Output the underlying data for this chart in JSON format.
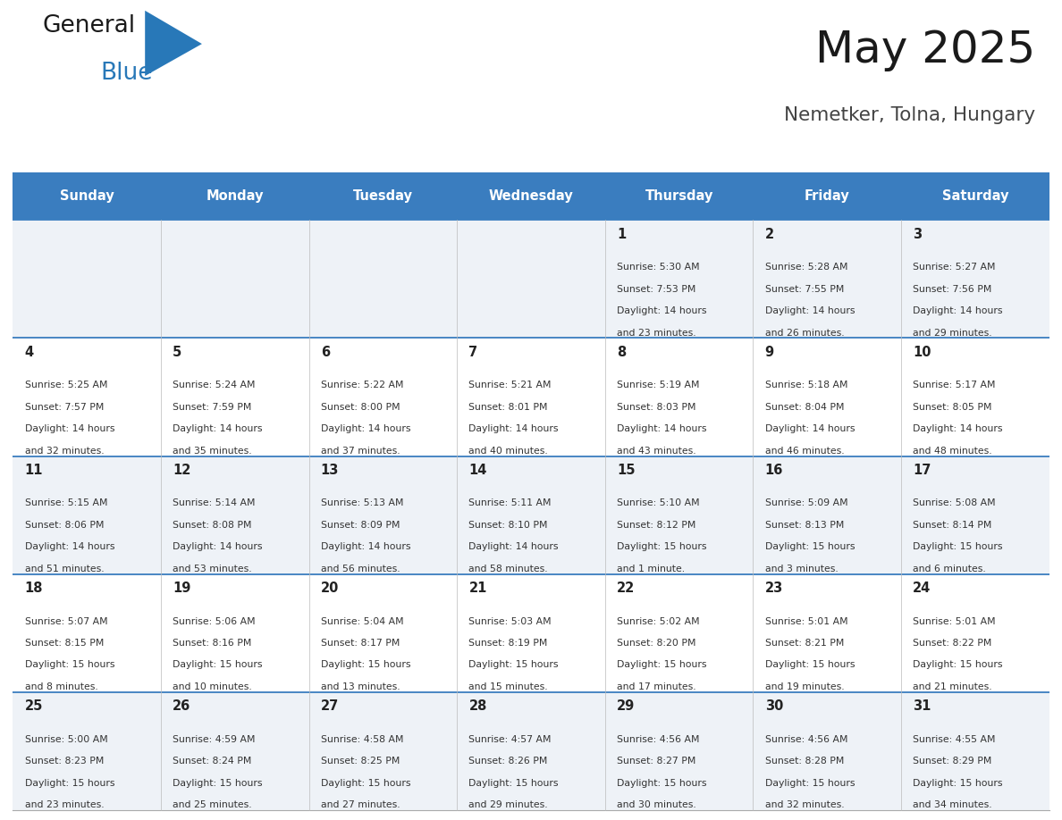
{
  "title": "May 2025",
  "subtitle": "Nemetker, Tolna, Hungary",
  "days_of_week": [
    "Sunday",
    "Monday",
    "Tuesday",
    "Wednesday",
    "Thursday",
    "Friday",
    "Saturday"
  ],
  "header_bg": "#3a7dbf",
  "header_text_color": "#ffffff",
  "row_bg_even": "#eef2f7",
  "row_bg_odd": "#ffffff",
  "border_color": "#3a7dbf",
  "day_num_color": "#222222",
  "info_text_color": "#333333",
  "title_color": "#1a1a1a",
  "subtitle_color": "#444444",
  "logo_color_general": "#1a1a1a",
  "logo_color_blue": "#2878b8",
  "logo_triangle_color": "#2878b8",
  "calendar": [
    [
      null,
      null,
      null,
      null,
      {
        "day": 1,
        "sunrise": "5:30 AM",
        "sunset": "7:53 PM",
        "daylight": "14 hours",
        "minutes": "and 23 minutes."
      },
      {
        "day": 2,
        "sunrise": "5:28 AM",
        "sunset": "7:55 PM",
        "daylight": "14 hours",
        "minutes": "and 26 minutes."
      },
      {
        "day": 3,
        "sunrise": "5:27 AM",
        "sunset": "7:56 PM",
        "daylight": "14 hours",
        "minutes": "and 29 minutes."
      }
    ],
    [
      {
        "day": 4,
        "sunrise": "5:25 AM",
        "sunset": "7:57 PM",
        "daylight": "14 hours",
        "minutes": "and 32 minutes."
      },
      {
        "day": 5,
        "sunrise": "5:24 AM",
        "sunset": "7:59 PM",
        "daylight": "14 hours",
        "minutes": "and 35 minutes."
      },
      {
        "day": 6,
        "sunrise": "5:22 AM",
        "sunset": "8:00 PM",
        "daylight": "14 hours",
        "minutes": "and 37 minutes."
      },
      {
        "day": 7,
        "sunrise": "5:21 AM",
        "sunset": "8:01 PM",
        "daylight": "14 hours",
        "minutes": "and 40 minutes."
      },
      {
        "day": 8,
        "sunrise": "5:19 AM",
        "sunset": "8:03 PM",
        "daylight": "14 hours",
        "minutes": "and 43 minutes."
      },
      {
        "day": 9,
        "sunrise": "5:18 AM",
        "sunset": "8:04 PM",
        "daylight": "14 hours",
        "minutes": "and 46 minutes."
      },
      {
        "day": 10,
        "sunrise": "5:17 AM",
        "sunset": "8:05 PM",
        "daylight": "14 hours",
        "minutes": "and 48 minutes."
      }
    ],
    [
      {
        "day": 11,
        "sunrise": "5:15 AM",
        "sunset": "8:06 PM",
        "daylight": "14 hours",
        "minutes": "and 51 minutes."
      },
      {
        "day": 12,
        "sunrise": "5:14 AM",
        "sunset": "8:08 PM",
        "daylight": "14 hours",
        "minutes": "and 53 minutes."
      },
      {
        "day": 13,
        "sunrise": "5:13 AM",
        "sunset": "8:09 PM",
        "daylight": "14 hours",
        "minutes": "and 56 minutes."
      },
      {
        "day": 14,
        "sunrise": "5:11 AM",
        "sunset": "8:10 PM",
        "daylight": "14 hours",
        "minutes": "and 58 minutes."
      },
      {
        "day": 15,
        "sunrise": "5:10 AM",
        "sunset": "8:12 PM",
        "daylight": "15 hours",
        "minutes": "and 1 minute."
      },
      {
        "day": 16,
        "sunrise": "5:09 AM",
        "sunset": "8:13 PM",
        "daylight": "15 hours",
        "minutes": "and 3 minutes."
      },
      {
        "day": 17,
        "sunrise": "5:08 AM",
        "sunset": "8:14 PM",
        "daylight": "15 hours",
        "minutes": "and 6 minutes."
      }
    ],
    [
      {
        "day": 18,
        "sunrise": "5:07 AM",
        "sunset": "8:15 PM",
        "daylight": "15 hours",
        "minutes": "and 8 minutes."
      },
      {
        "day": 19,
        "sunrise": "5:06 AM",
        "sunset": "8:16 PM",
        "daylight": "15 hours",
        "minutes": "and 10 minutes."
      },
      {
        "day": 20,
        "sunrise": "5:04 AM",
        "sunset": "8:17 PM",
        "daylight": "15 hours",
        "minutes": "and 13 minutes."
      },
      {
        "day": 21,
        "sunrise": "5:03 AM",
        "sunset": "8:19 PM",
        "daylight": "15 hours",
        "minutes": "and 15 minutes."
      },
      {
        "day": 22,
        "sunrise": "5:02 AM",
        "sunset": "8:20 PM",
        "daylight": "15 hours",
        "minutes": "and 17 minutes."
      },
      {
        "day": 23,
        "sunrise": "5:01 AM",
        "sunset": "8:21 PM",
        "daylight": "15 hours",
        "minutes": "and 19 minutes."
      },
      {
        "day": 24,
        "sunrise": "5:01 AM",
        "sunset": "8:22 PM",
        "daylight": "15 hours",
        "minutes": "and 21 minutes."
      }
    ],
    [
      {
        "day": 25,
        "sunrise": "5:00 AM",
        "sunset": "8:23 PM",
        "daylight": "15 hours",
        "minutes": "and 23 minutes."
      },
      {
        "day": 26,
        "sunrise": "4:59 AM",
        "sunset": "8:24 PM",
        "daylight": "15 hours",
        "minutes": "and 25 minutes."
      },
      {
        "day": 27,
        "sunrise": "4:58 AM",
        "sunset": "8:25 PM",
        "daylight": "15 hours",
        "minutes": "and 27 minutes."
      },
      {
        "day": 28,
        "sunrise": "4:57 AM",
        "sunset": "8:26 PM",
        "daylight": "15 hours",
        "minutes": "and 29 minutes."
      },
      {
        "day": 29,
        "sunrise": "4:56 AM",
        "sunset": "8:27 PM",
        "daylight": "15 hours",
        "minutes": "and 30 minutes."
      },
      {
        "day": 30,
        "sunrise": "4:56 AM",
        "sunset": "8:28 PM",
        "daylight": "15 hours",
        "minutes": "and 32 minutes."
      },
      {
        "day": 31,
        "sunrise": "4:55 AM",
        "sunset": "8:29 PM",
        "daylight": "15 hours",
        "minutes": "and 34 minutes."
      }
    ]
  ]
}
